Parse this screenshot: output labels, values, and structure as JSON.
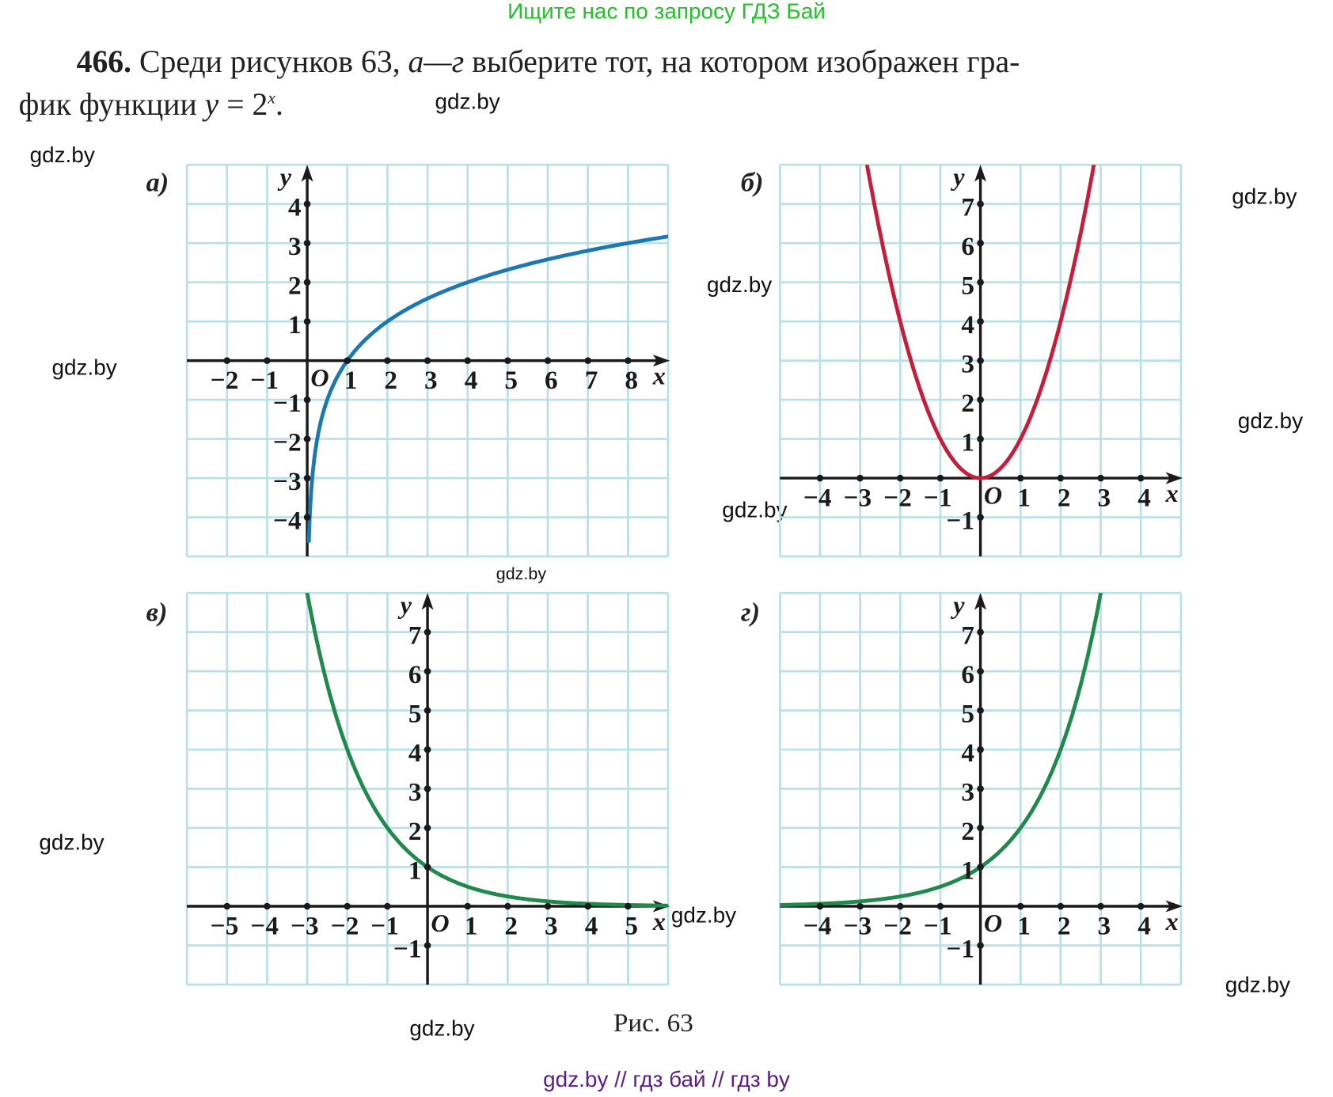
{
  "header_link": "Ищите нас по запросу ГДЗ Бай",
  "problem": {
    "number": "466.",
    "line1_text": " Среди рисунков 63, ",
    "range": "а—г",
    "line1_rest": " выберите тот, на котором изображен гра-",
    "line2_text": "фик функции ",
    "formula_y": "y",
    "formula_eq": " = 2",
    "formula_exp": "x",
    "formula_end": "."
  },
  "watermarks": [
    "gdz.by",
    "gdz.by",
    "gdz.by",
    "gdz.by",
    "gdz.by",
    "gdz.by",
    "gdz.by",
    "gdz.by",
    "gdz.by",
    "gdz.by",
    "gdz.by",
    "gdz.by"
  ],
  "caption": "Рис. 63",
  "footer_link": "gdz.by  //  гдз бай  //  гдз by",
  "colors": {
    "grid": "#b9dfe7",
    "axis": "#1a1a1a",
    "blue": "#1b78b3",
    "red": "#c41e3a",
    "green": "#1f8a4c"
  },
  "chart_data": [
    {
      "type": "line",
      "panel_label": "а)",
      "function": "log2",
      "xlim": [
        -3,
        9
      ],
      "ylim": [
        -5,
        5
      ],
      "x_ticks": [
        -2,
        -1,
        1,
        2,
        3,
        4,
        5,
        6,
        7,
        8
      ],
      "x_tick_labels": [
        "−2",
        "−1",
        "1",
        "2",
        "3",
        "4",
        "5",
        "6",
        "7",
        "8"
      ],
      "y_ticks": [
        4,
        3,
        2,
        1,
        -1,
        -2,
        -3,
        -4
      ],
      "y_tick_labels": [
        "4",
        "3",
        "2",
        "1",
        "−1",
        "−2",
        "−3",
        "−4"
      ],
      "xlabel": "x",
      "ylabel": "y",
      "origin_label": "O",
      "color": "#1b78b3",
      "grid": true
    },
    {
      "type": "line",
      "panel_label": "б)",
      "function": "square",
      "xlim": [
        -5,
        5
      ],
      "ylim": [
        -2,
        8
      ],
      "x_ticks": [
        -4,
        -3,
        -2,
        -1,
        1,
        2,
        3,
        4
      ],
      "x_tick_labels": [
        "−4",
        "−3",
        "−2",
        "−1",
        "1",
        "2",
        "3",
        "4"
      ],
      "y_ticks": [
        7,
        6,
        5,
        4,
        3,
        2,
        1,
        -1
      ],
      "y_tick_labels": [
        "7",
        "6",
        "5",
        "4",
        "3",
        "2",
        "1",
        "−1"
      ],
      "xlabel": "x",
      "ylabel": "y",
      "origin_label": "O",
      "color": "#c41e3a",
      "grid": true
    },
    {
      "type": "line",
      "panel_label": "в)",
      "function": "half_pow",
      "xlim": [
        -6,
        6
      ],
      "ylim": [
        -2,
        8
      ],
      "x_ticks": [
        -5,
        -4,
        -3,
        -2,
        -1,
        1,
        2,
        3,
        4,
        5
      ],
      "x_tick_labels": [
        "−5",
        "−4",
        "−3",
        "−2",
        "−1",
        "1",
        "2",
        "3",
        "4",
        "5"
      ],
      "y_ticks": [
        7,
        6,
        5,
        4,
        3,
        2,
        1,
        -1
      ],
      "y_tick_labels": [
        "7",
        "6",
        "5",
        "4",
        "3",
        "2",
        "1",
        "−1"
      ],
      "xlabel": "x",
      "ylabel": "y",
      "origin_label": "O",
      "color": "#1f8a4c",
      "grid": true
    },
    {
      "type": "line",
      "panel_label": "г)",
      "function": "two_pow",
      "xlim": [
        -5,
        5
      ],
      "ylim": [
        -2,
        8
      ],
      "x_ticks": [
        -4,
        -3,
        -2,
        -1,
        1,
        2,
        3,
        4
      ],
      "x_tick_labels": [
        "−4",
        "−3",
        "−2",
        "−1",
        "1",
        "2",
        "3",
        "4"
      ],
      "y_ticks": [
        7,
        6,
        5,
        4,
        3,
        2,
        1,
        -1
      ],
      "y_tick_labels": [
        "7",
        "6",
        "5",
        "4",
        "3",
        "2",
        "1",
        "−1"
      ],
      "xlabel": "x",
      "ylabel": "y",
      "origin_label": "O",
      "color": "#1f8a4c",
      "grid": true
    }
  ]
}
